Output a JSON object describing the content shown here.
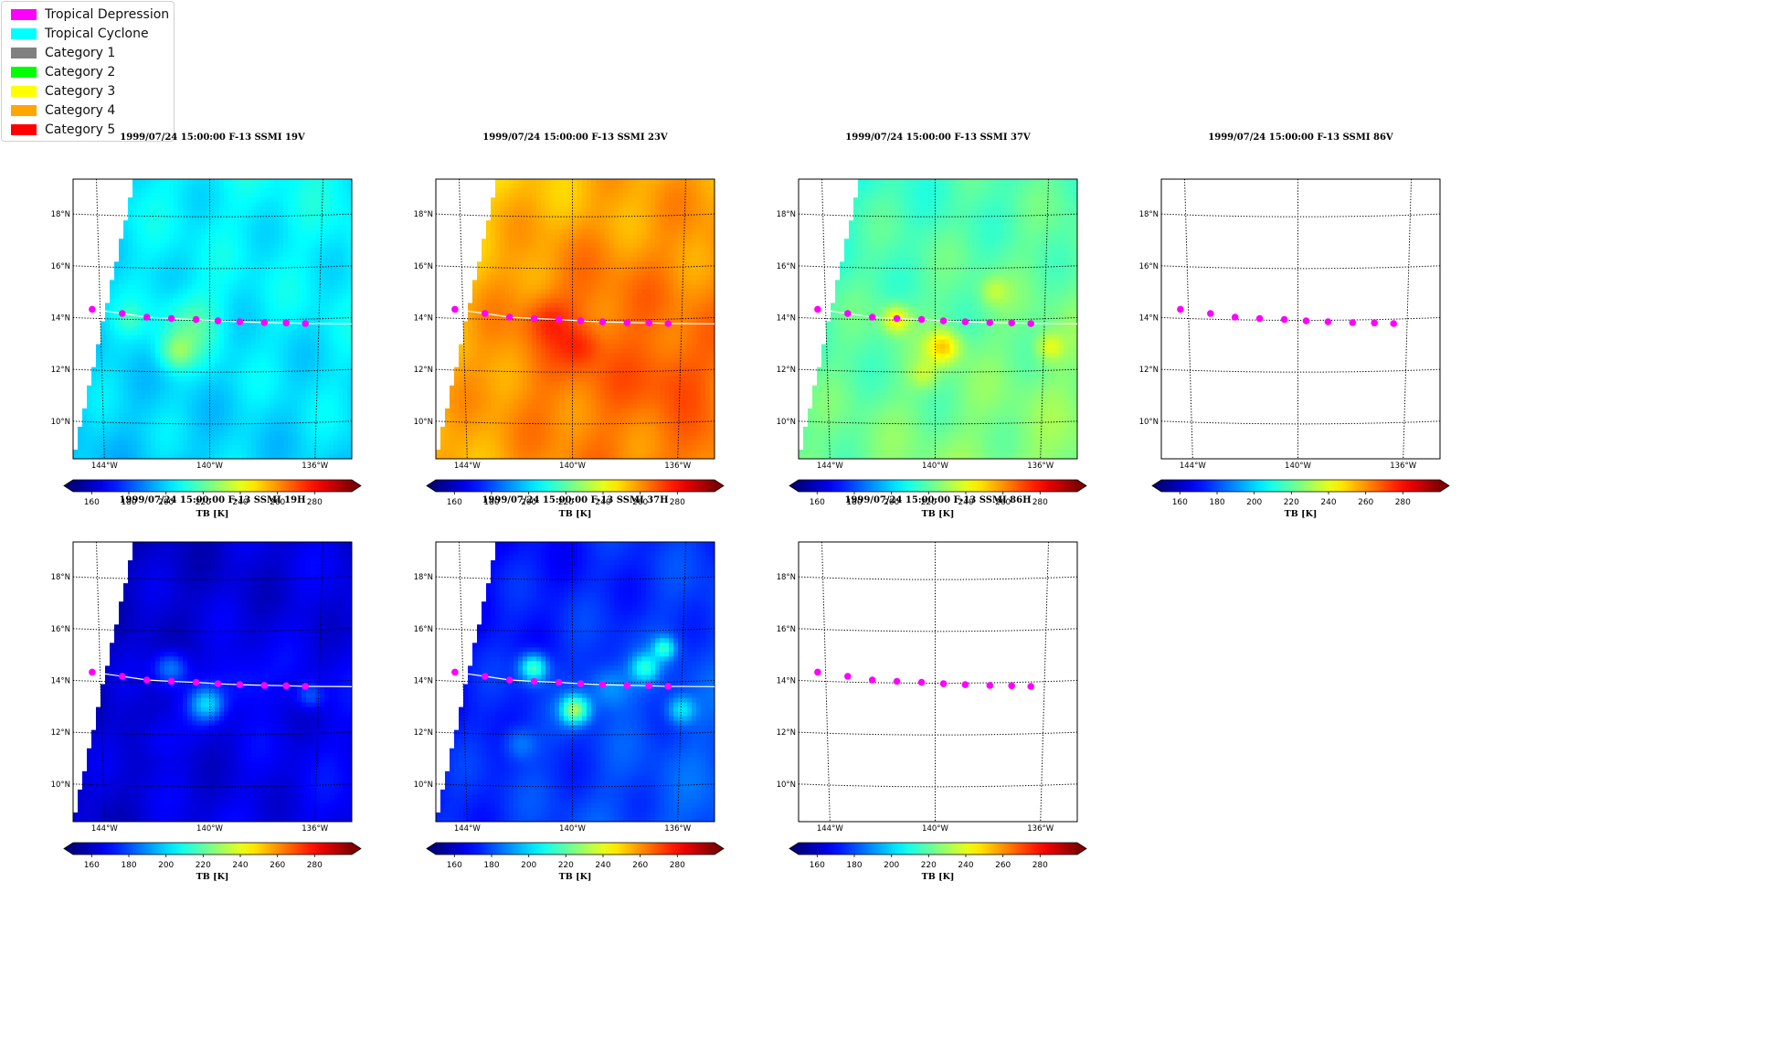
{
  "legend": {
    "items": [
      {
        "label": "Tropical Depression",
        "color": "#ff00ff"
      },
      {
        "label": "Tropical Cyclone",
        "color": "#00ffff"
      },
      {
        "label": "Category 1",
        "color": "#808080"
      },
      {
        "label": "Category 2",
        "color": "#00ff00"
      },
      {
        "label": "Category 3",
        "color": "#ffff00"
      },
      {
        "label": "Category 4",
        "color": "#ffa500"
      },
      {
        "label": "Category 5",
        "color": "#ff0000"
      }
    ]
  },
  "map_axes": {
    "lat_ticks": [
      "18°N",
      "16°N",
      "14°N",
      "12°N",
      "10°N"
    ],
    "lon_ticks": [
      "144°W",
      "140°W",
      "136°W"
    ]
  },
  "colorbar": {
    "ticks": [
      "160",
      "180",
      "200",
      "220",
      "240",
      "260",
      "280"
    ],
    "label": "TB [K]",
    "colormap": "jet",
    "range": [
      150,
      300
    ]
  },
  "track": {
    "color": "#ff00ff",
    "points": [
      {
        "lat": 14.35,
        "lon": -144.3
      },
      {
        "lat": 14.22,
        "lon": -143.2
      },
      {
        "lat": 14.1,
        "lon": -142.3
      },
      {
        "lat": 14.06,
        "lon": -141.4
      },
      {
        "lat": 14.03,
        "lon": -140.5
      },
      {
        "lat": 13.98,
        "lon": -139.7
      },
      {
        "lat": 13.94,
        "lon": -138.9
      },
      {
        "lat": 13.9,
        "lon": -138.0
      },
      {
        "lat": 13.87,
        "lon": -137.2
      },
      {
        "lat": 13.83,
        "lon": -136.5
      }
    ]
  },
  "panels": [
    {
      "id": "19v",
      "title": "1999/07/24 15:00:00  F-13 SSMI 19V",
      "has_data": true,
      "track_line": true
    },
    {
      "id": "23v",
      "title": "1999/07/24 15:00:00  F-13 SSMI 23V",
      "has_data": true,
      "track_line": true
    },
    {
      "id": "37v",
      "title": "1999/07/24 15:00:00  F-13 SSMI 37V",
      "has_data": true,
      "track_line": true
    },
    {
      "id": "86v",
      "title": "1999/07/24 15:00:00  F-13 SSMI 86V",
      "has_data": false,
      "track_line": false
    },
    {
      "id": "19h",
      "title": "1999/07/24 15:00:00  F-13 SSMI 19H",
      "has_data": true,
      "track_line": true
    },
    {
      "id": "37h",
      "title": "1999/07/24 15:00:00  F-13 SSMI 37H",
      "has_data": true,
      "track_line": true
    },
    {
      "id": "86h",
      "title": "1999/07/24 15:00:00  F-13 SSMI 86H",
      "has_data": false,
      "track_line": false
    }
  ]
}
